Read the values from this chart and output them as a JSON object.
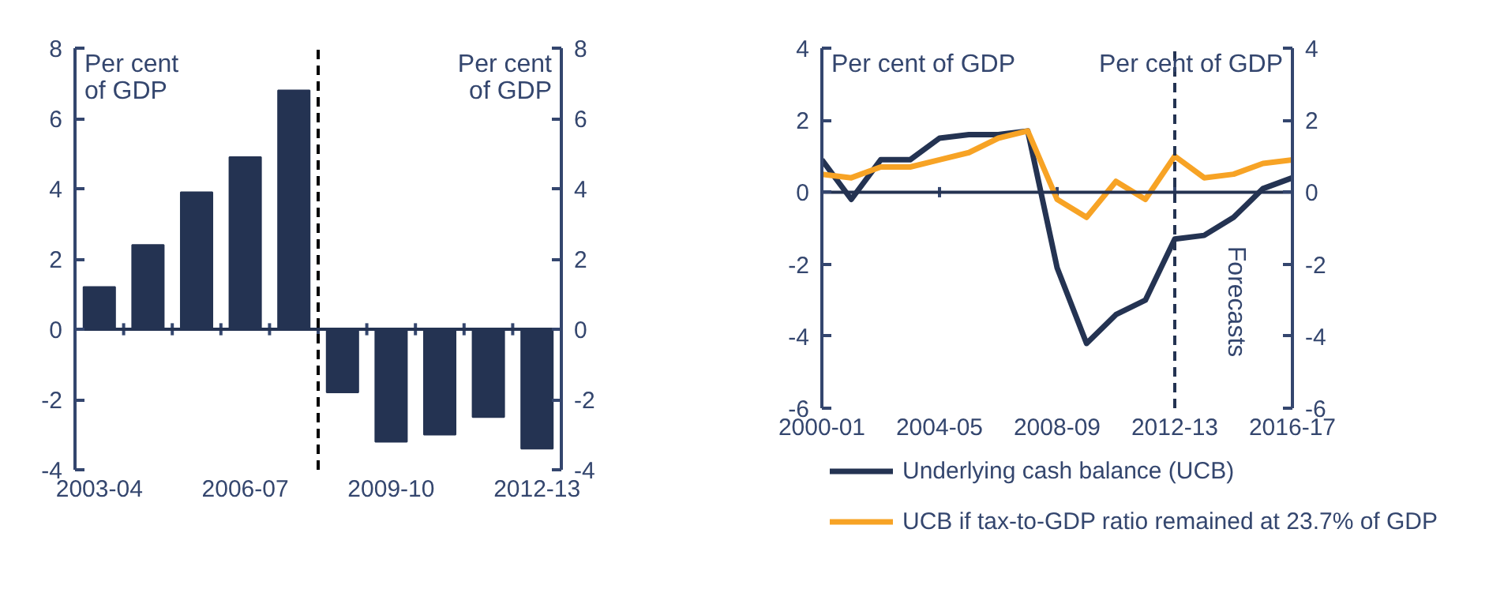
{
  "chart_data": [
    {
      "type": "bar",
      "categories": [
        "2003-04",
        null,
        null,
        "2006-07",
        null,
        null,
        "2009-10",
        null,
        null,
        "2012-13"
      ],
      "values": [
        1.2,
        2.4,
        3.9,
        4.9,
        6.8,
        -1.8,
        -3.2,
        -3.0,
        -2.5,
        -3.4
      ],
      "color": "#243352",
      "ylabel": "Per cent of GDP",
      "y2label": "Per cent of GDP",
      "ylim": [
        -4,
        8
      ],
      "yticks": [
        -4,
        -2,
        0,
        2,
        4,
        6,
        8
      ],
      "y2lim": [
        -4,
        8
      ],
      "y2ticks": [
        -4,
        -2,
        0,
        2,
        4,
        6,
        8
      ],
      "ref_lines": [
        {
          "axis": "y",
          "value": 0,
          "color": "#243352",
          "line_style": "solid"
        }
      ],
      "legend": false
    },
    {
      "type": "line",
      "categories": [
        "2000-01",
        null,
        null,
        null,
        "2004-05",
        null,
        null,
        null,
        "2008-09",
        null,
        null,
        null,
        "2012-13",
        null,
        null,
        null,
        "2016-17"
      ],
      "series": [
        {
          "name": "Underlying cash balance (UCB)",
          "color": "#243352",
          "values": [
            0.9,
            -0.2,
            0.9,
            0.9,
            1.5,
            1.6,
            1.6,
            1.7,
            -2.1,
            -4.2,
            -3.4,
            -3.0,
            -1.3,
            -1.2,
            -0.7,
            0.1,
            0.4
          ]
        },
        {
          "name": "UCB if tax-to-GDP ratio remained at 23.7% of GDP",
          "color": "#f7a325",
          "values": [
            0.5,
            0.4,
            0.7,
            0.7,
            0.9,
            1.1,
            1.5,
            1.7,
            -0.2,
            -0.7,
            0.3,
            -0.2,
            1.0,
            0.4,
            0.5,
            0.8,
            0.9
          ]
        }
      ],
      "ylabel": "Per cent of GDP",
      "y2label": "Per cent of GDP",
      "ylim": [
        -6,
        4
      ],
      "yticks": [
        -6,
        -4,
        -2,
        0,
        2,
        4
      ],
      "y2lim": [
        -6,
        4
      ],
      "y2ticks": [
        -6,
        -4,
        -2,
        0,
        2,
        4
      ],
      "ref_lines": [
        {
          "axis": "y",
          "value": 0,
          "color": "#243352",
          "line_style": "solid"
        },
        {
          "axis": "x",
          "value": "2012-13",
          "label": "Forecasts",
          "color": "#243352",
          "line_style": "dashed"
        }
      ],
      "legend": "bottom"
    }
  ]
}
